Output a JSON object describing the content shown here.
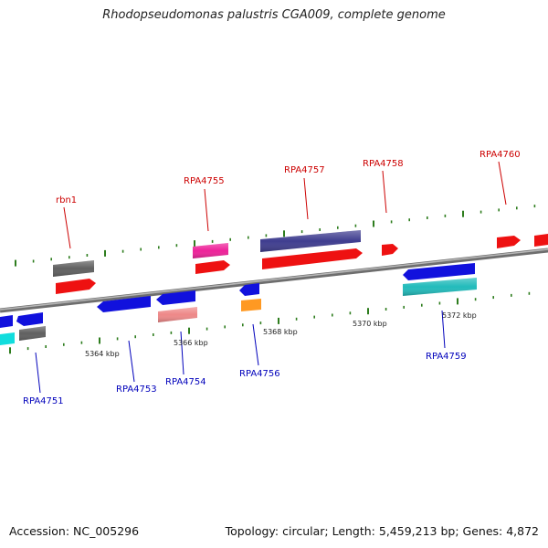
{
  "title": "Rhodopseudomonas palustris CGA009, complete genome",
  "footer": {
    "accession": "Accession: NC_005296",
    "topology": "Topology: circular; Length: 5,459,213 bp; Genes: 4,872"
  },
  "colors": {
    "backbone": "#8c8c8c",
    "ticks": "#2e7d1e",
    "forward_label": "#cc0000",
    "reverse_label": "#0000bb"
  },
  "position_labels": [
    "5364 kbp",
    "5366 kbp",
    "5368 kbp",
    "5370 kbp",
    "5372 kbp"
  ],
  "gene_labels": {
    "forward": [
      "rbn1",
      "RPA4755",
      "RPA4757",
      "RPA4758",
      "RPA4760"
    ],
    "reverse": [
      "RPA4751",
      "RPA4753",
      "RPA4754",
      "RPA4756",
      "RPA4759"
    ]
  }
}
